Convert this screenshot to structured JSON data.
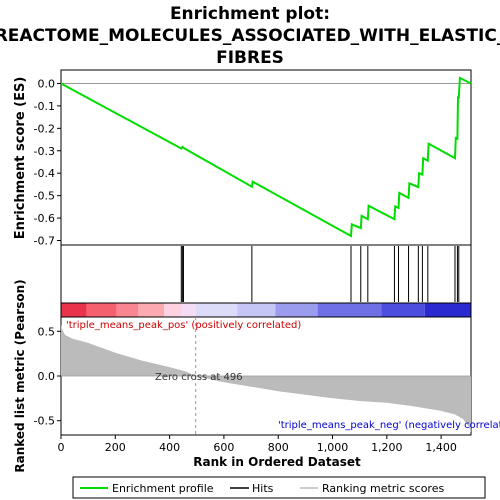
{
  "title_line1": "Enrichment plot:",
  "title_line2": "REACTOME_MOLECULES_ASSOCIATED_WITH_ELASTIC_",
  "title_line3": "FIBRES",
  "colors": {
    "enrichment": "#00dd00",
    "hits": "#000000",
    "ranking_fill": "#bbbbbb",
    "axis": "#000000",
    "zero_line": "#999999",
    "label_pos": "#cc0000",
    "label_neg": "#0000cc"
  },
  "chart_data": [
    {
      "type": "line",
      "name": "enrichment-score-panel",
      "ylabel": "Enrichment score (ES)",
      "xlim": [
        0,
        1510
      ],
      "ylim": [
        -0.72,
        0.06
      ],
      "yticks": [
        0.0,
        -0.1,
        -0.2,
        -0.3,
        -0.4,
        -0.5,
        -0.6,
        -0.7
      ],
      "ytick_labels": [
        "0.0",
        "-0.1",
        "-0.2",
        "-0.3",
        "-0.4",
        "-0.5",
        "-0.6",
        "-0.7"
      ],
      "es_points": [
        [
          0,
          0.0
        ],
        [
          443,
          -0.29
        ],
        [
          447,
          -0.283
        ],
        [
          451,
          -0.287
        ],
        [
          703,
          -0.46
        ],
        [
          706,
          -0.438
        ],
        [
          1068,
          -0.68
        ],
        [
          1071,
          -0.628
        ],
        [
          1104,
          -0.645
        ],
        [
          1107,
          -0.59
        ],
        [
          1130,
          -0.605
        ],
        [
          1133,
          -0.545
        ],
        [
          1228,
          -0.605
        ],
        [
          1231,
          -0.548
        ],
        [
          1243,
          -0.555
        ],
        [
          1246,
          -0.488
        ],
        [
          1280,
          -0.51
        ],
        [
          1283,
          -0.445
        ],
        [
          1316,
          -0.462
        ],
        [
          1319,
          -0.4
        ],
        [
          1331,
          -0.406
        ],
        [
          1334,
          -0.333
        ],
        [
          1351,
          -0.344
        ],
        [
          1354,
          -0.268
        ],
        [
          1451,
          -0.333
        ],
        [
          1454,
          -0.243
        ],
        [
          1460,
          -0.246
        ],
        [
          1462,
          -0.062
        ],
        [
          1465,
          -0.063
        ],
        [
          1469,
          0.025
        ],
        [
          1510,
          0.0
        ]
      ]
    },
    {
      "type": "bar",
      "name": "hits-panel",
      "hit_positions": [
        443,
        447,
        451,
        703,
        1068,
        1104,
        1130,
        1228,
        1243,
        1280,
        1316,
        1331,
        1351,
        1451,
        1460,
        1465
      ]
    },
    {
      "type": "heatmap",
      "name": "correlation-color-bar",
      "segments": [
        {
          "x0": 0,
          "x1": 95,
          "color": "#e8334a"
        },
        {
          "x0": 95,
          "x1": 205,
          "color": "#f5606f"
        },
        {
          "x0": 205,
          "x1": 285,
          "color": "#f98590"
        },
        {
          "x0": 285,
          "x1": 380,
          "color": "#fcaab1"
        },
        {
          "x0": 380,
          "x1": 445,
          "color": "#fdd0e2"
        },
        {
          "x0": 445,
          "x1": 496,
          "color": "#f4dcf4"
        },
        {
          "x0": 496,
          "x1": 650,
          "color": "#dcdcf8"
        },
        {
          "x0": 650,
          "x1": 790,
          "color": "#c6c6f6"
        },
        {
          "x0": 790,
          "x1": 945,
          "color": "#9c9cef"
        },
        {
          "x0": 945,
          "x1": 1180,
          "color": "#7070e6"
        },
        {
          "x0": 1180,
          "x1": 1340,
          "color": "#4d4dde"
        },
        {
          "x0": 1340,
          "x1": 1510,
          "color": "#2a2ad0"
        }
      ]
    },
    {
      "type": "area",
      "name": "ranked-list-metric-panel",
      "xlabel": "Rank in Ordered Dataset",
      "ylabel": "Ranked list metric (Pearson)",
      "xlim": [
        0,
        1510
      ],
      "ylim": [
        -0.66,
        0.66
      ],
      "xticks": [
        0,
        200,
        400,
        600,
        800,
        1000,
        1200,
        1400
      ],
      "xtick_labels": [
        "0",
        "200",
        "400",
        "600",
        "800",
        "1,000",
        "1,200",
        "1,400"
      ],
      "yticks": [
        0.5,
        0.0,
        -0.5
      ],
      "ytick_labels": [
        "0.5",
        "0.0",
        "-0.5"
      ],
      "metric_points": [
        [
          0,
          0.58
        ],
        [
          4,
          0.52
        ],
        [
          15,
          0.46
        ],
        [
          40,
          0.42
        ],
        [
          100,
          0.37
        ],
        [
          200,
          0.26
        ],
        [
          300,
          0.17
        ],
        [
          400,
          0.1
        ],
        [
          460,
          0.05
        ],
        [
          496,
          0.0
        ],
        [
          600,
          -0.07
        ],
        [
          700,
          -0.12
        ],
        [
          800,
          -0.17
        ],
        [
          900,
          -0.21
        ],
        [
          1000,
          -0.25
        ],
        [
          1100,
          -0.28
        ],
        [
          1200,
          -0.3
        ],
        [
          1300,
          -0.34
        ],
        [
          1400,
          -0.39
        ],
        [
          1450,
          -0.43
        ],
        [
          1480,
          -0.48
        ],
        [
          1500,
          -0.56
        ],
        [
          1510,
          -0.63
        ]
      ],
      "annotations": {
        "zero_cross": "Zero cross at 496",
        "pos_label": "'triple_means_peak_pos' (positively correlated)",
        "neg_label": "'triple_means_peak_neg' (negatively correlated)"
      }
    }
  ],
  "legend": {
    "placement": "bottom",
    "entries": [
      "Enrichment profile",
      "Hits",
      "Ranking metric scores"
    ]
  }
}
